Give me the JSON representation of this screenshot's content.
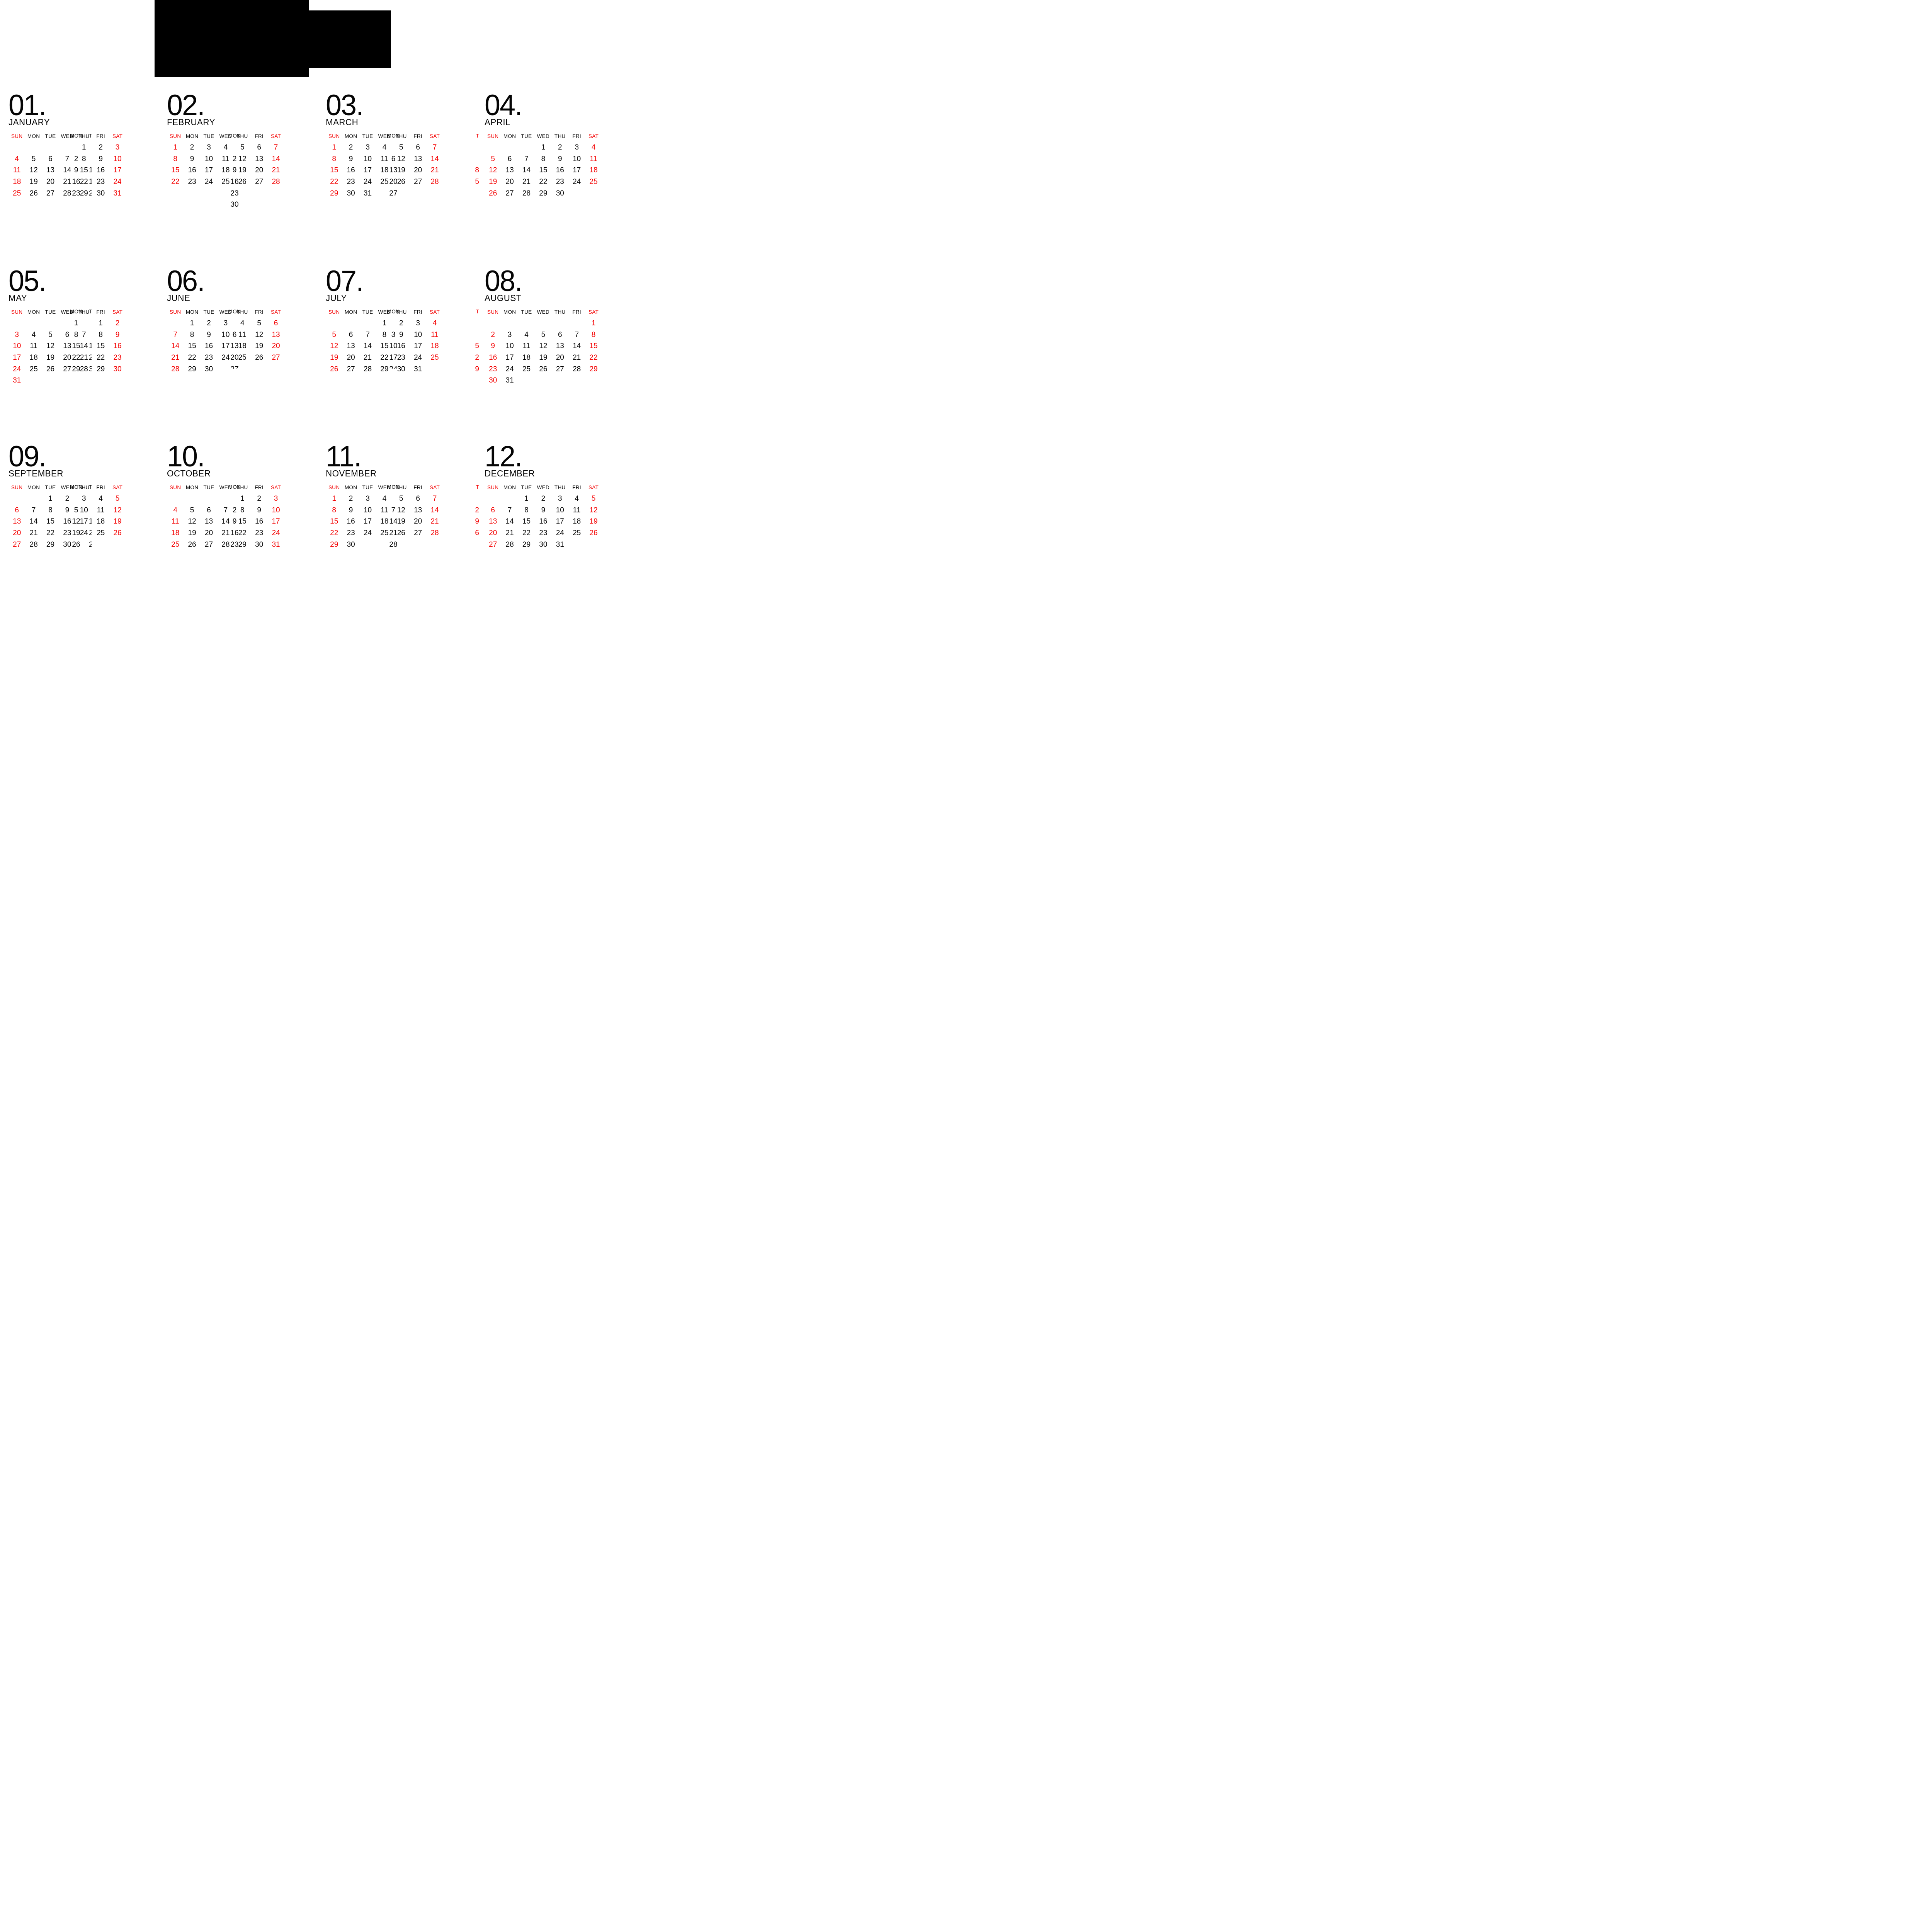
{
  "page": {
    "background": "#ffffff",
    "red": "#f40000",
    "black": "#050505"
  },
  "masthead": {
    "large_block": "",
    "small_block": ""
  },
  "weekdays": [
    "SUN",
    "MON",
    "TUE",
    "WED",
    "THU",
    "FRI",
    "SAT"
  ],
  "overlay": {
    "weekday_label": "MON",
    "weekday_sliver": "T"
  },
  "layout": {
    "col_lefts": [
      22,
      432,
      843,
      1254
    ],
    "row_tops": [
      243,
      698,
      1152
    ]
  },
  "months": [
    {
      "num": "01.",
      "name": "JANUARY",
      "col": 0,
      "row": 0,
      "weeks": [
        [
          "",
          "",
          "",
          "",
          "1",
          "2",
          "3"
        ],
        [
          "4",
          "5",
          "6",
          "7",
          "8",
          "9",
          "10"
        ],
        [
          "11",
          "12",
          "13",
          "14",
          "15",
          "16",
          "17"
        ],
        [
          "18",
          "19",
          "20",
          "21",
          "22",
          "23",
          "24"
        ],
        [
          "25",
          "26",
          "27",
          "28",
          "29",
          "30",
          "31"
        ]
      ],
      "overlay_mondays": [
        {
          "week": 2,
          "value": "2"
        },
        {
          "week": 3,
          "value": "9"
        },
        {
          "week": 4,
          "value": "16"
        },
        {
          "week": 5,
          "value": "23"
        }
      ],
      "tue_slivers": [
        {
          "week": 3,
          "value": "1"
        },
        {
          "week": 4,
          "value": "1"
        },
        {
          "week": 5,
          "value": "2"
        }
      ],
      "header_sliver": true,
      "clipped_monday": null,
      "left_partials": []
    },
    {
      "num": "02.",
      "name": "FEBRUARY",
      "col": 1,
      "row": 0,
      "weeks": [
        [
          "1",
          "2",
          "3",
          "4",
          "5",
          "6",
          "7"
        ],
        [
          "8",
          "9",
          "10",
          "11",
          "12",
          "13",
          "14"
        ],
        [
          "15",
          "16",
          "17",
          "18",
          "19",
          "20",
          "21"
        ],
        [
          "22",
          "23",
          "24",
          "25",
          "26",
          "27",
          "28"
        ]
      ],
      "overlay_mondays": [
        {
          "week": 2,
          "value": "2"
        },
        {
          "week": 3,
          "value": "9"
        },
        {
          "week": 4,
          "value": "16"
        },
        {
          "week": 5,
          "value": "23"
        },
        {
          "week": 6,
          "value": "30"
        }
      ],
      "tue_slivers": [],
      "header_sliver": false,
      "clipped_monday": null,
      "left_partials": []
    },
    {
      "num": "03.",
      "name": "MARCH",
      "col": 2,
      "row": 0,
      "weeks": [
        [
          "1",
          "2",
          "3",
          "4",
          "5",
          "6",
          "7"
        ],
        [
          "8",
          "9",
          "10",
          "11",
          "12",
          "13",
          "14"
        ],
        [
          "15",
          "16",
          "17",
          "18",
          "19",
          "20",
          "21"
        ],
        [
          "22",
          "23",
          "24",
          "25",
          "26",
          "27",
          "28"
        ],
        [
          "29",
          "30",
          "31",
          "",
          "",
          "",
          ""
        ]
      ],
      "overlay_mondays": [
        {
          "week": 2,
          "value": "6"
        },
        {
          "week": 3,
          "value": "13"
        },
        {
          "week": 4,
          "value": "20"
        },
        {
          "week": 5,
          "value": "27"
        }
      ],
      "tue_slivers": [],
      "header_sliver": false,
      "clipped_monday": null,
      "left_partials": []
    },
    {
      "num": "04.",
      "name": "APRIL",
      "col": 3,
      "row": 0,
      "weeks": [
        [
          "",
          "",
          "",
          "1",
          "2",
          "3",
          "4"
        ],
        [
          "5",
          "6",
          "7",
          "8",
          "9",
          "10",
          "11"
        ],
        [
          "12",
          "13",
          "14",
          "15",
          "16",
          "17",
          "18"
        ],
        [
          "19",
          "20",
          "21",
          "22",
          "23",
          "24",
          "25"
        ],
        [
          "26",
          "27",
          "28",
          "29",
          "30",
          "",
          ""
        ]
      ],
      "overlay_mondays": [],
      "tue_slivers": [],
      "header_sliver": false,
      "clipped_monday": null,
      "left_partials": [
        {
          "week": 0,
          "value": "T"
        },
        {
          "week": 3,
          "value": "8"
        },
        {
          "week": 4,
          "value": "5"
        }
      ]
    },
    {
      "num": "05.",
      "name": "MAY",
      "col": 0,
      "row": 1,
      "weeks": [
        [
          "",
          "",
          "",
          "",
          "",
          "1",
          "2"
        ],
        [
          "3",
          "4",
          "5",
          "6",
          "7",
          "8",
          "9"
        ],
        [
          "10",
          "11",
          "12",
          "13",
          "14",
          "15",
          "16"
        ],
        [
          "17",
          "18",
          "19",
          "20",
          "21",
          "22",
          "23"
        ],
        [
          "24",
          "25",
          "26",
          "27",
          "28",
          "29",
          "30"
        ],
        [
          "31",
          "",
          "",
          "",
          "",
          "",
          ""
        ]
      ],
      "overlay_mondays": [
        {
          "week": 1,
          "value": "1"
        },
        {
          "week": 2,
          "value": "8"
        },
        {
          "week": 3,
          "value": "15"
        },
        {
          "week": 4,
          "value": "22"
        },
        {
          "week": 5,
          "value": "29"
        }
      ],
      "tue_slivers": [
        {
          "week": 3,
          "value": "1"
        },
        {
          "week": 4,
          "value": "2"
        },
        {
          "week": 5,
          "value": "3"
        }
      ],
      "header_sliver": true,
      "clipped_monday": null,
      "left_partials": []
    },
    {
      "num": "06.",
      "name": "JUNE",
      "col": 1,
      "row": 1,
      "weeks": [
        [
          "",
          "1",
          "2",
          "3",
          "4",
          "5",
          "6"
        ],
        [
          "7",
          "8",
          "9",
          "10",
          "11",
          "12",
          "13"
        ],
        [
          "14",
          "15",
          "16",
          "17",
          "18",
          "19",
          "20"
        ],
        [
          "21",
          "22",
          "23",
          "24",
          "25",
          "26",
          "27"
        ],
        [
          "28",
          "29",
          "30",
          "",
          "",
          "",
          ""
        ]
      ],
      "overlay_mondays": [
        {
          "week": 2,
          "value": "6"
        },
        {
          "week": 3,
          "value": "13"
        },
        {
          "week": 4,
          "value": "20"
        }
      ],
      "tue_slivers": [],
      "header_sliver": false,
      "clipped_monday": {
        "week": 5,
        "value": "27"
      },
      "left_partials": []
    },
    {
      "num": "07.",
      "name": "JULY",
      "col": 2,
      "row": 1,
      "weeks": [
        [
          "",
          "",
          "",
          "1",
          "2",
          "3",
          "4"
        ],
        [
          "5",
          "6",
          "7",
          "8",
          "9",
          "10",
          "11"
        ],
        [
          "12",
          "13",
          "14",
          "15",
          "16",
          "17",
          "18"
        ],
        [
          "19",
          "20",
          "21",
          "22",
          "23",
          "24",
          "25"
        ],
        [
          "26",
          "27",
          "28",
          "29",
          "30",
          "31",
          ""
        ]
      ],
      "overlay_mondays": [
        {
          "week": 2,
          "value": "3"
        },
        {
          "week": 3,
          "value": "10"
        },
        {
          "week": 4,
          "value": "17"
        }
      ],
      "tue_slivers": [],
      "header_sliver": false,
      "clipped_monday": {
        "week": 5,
        "value": "24"
      },
      "left_partials": []
    },
    {
      "num": "08.",
      "name": "AUGUST",
      "col": 3,
      "row": 1,
      "weeks": [
        [
          "",
          "",
          "",
          "",
          "",
          "",
          "1"
        ],
        [
          "2",
          "3",
          "4",
          "5",
          "6",
          "7",
          "8"
        ],
        [
          "9",
          "10",
          "11",
          "12",
          "13",
          "14",
          "15"
        ],
        [
          "16",
          "17",
          "18",
          "19",
          "20",
          "21",
          "22"
        ],
        [
          "23",
          "24",
          "25",
          "26",
          "27",
          "28",
          "29"
        ],
        [
          "30",
          "31",
          "",
          "",
          "",
          "",
          ""
        ]
      ],
      "overlay_mondays": [],
      "tue_slivers": [],
      "header_sliver": false,
      "clipped_monday": null,
      "left_partials": [
        {
          "week": 0,
          "value": "T"
        },
        {
          "week": 3,
          "value": "5"
        },
        {
          "week": 4,
          "value": "2"
        },
        {
          "week": 5,
          "value": "9"
        }
      ]
    },
    {
      "num": "09.",
      "name": "SEPTEMBER",
      "col": 0,
      "row": 2,
      "weeks": [
        [
          "",
          "",
          "1",
          "2",
          "3",
          "4",
          "5"
        ],
        [
          "6",
          "7",
          "8",
          "9",
          "10",
          "11",
          "12"
        ],
        [
          "13",
          "14",
          "15",
          "16",
          "17",
          "18",
          "19"
        ],
        [
          "20",
          "21",
          "22",
          "23",
          "24",
          "25",
          "26"
        ],
        [
          "27",
          "28",
          "29",
          "30",
          "",
          "",
          ""
        ]
      ],
      "overlay_mondays": [
        {
          "week": 2,
          "value": "5"
        },
        {
          "week": 3,
          "value": "12"
        },
        {
          "week": 4,
          "value": "19"
        },
        {
          "week": 5,
          "value": "26"
        }
      ],
      "tue_slivers": [
        {
          "week": 3,
          "value": "1"
        },
        {
          "week": 4,
          "value": "2"
        },
        {
          "week": 5,
          "value": "2"
        }
      ],
      "header_sliver": true,
      "clipped_monday": null,
      "left_partials": []
    },
    {
      "num": "10.",
      "name": "OCTOBER",
      "col": 1,
      "row": 2,
      "weeks": [
        [
          "",
          "",
          "",
          "",
          "1",
          "2",
          "3"
        ],
        [
          "4",
          "5",
          "6",
          "7",
          "8",
          "9",
          "10"
        ],
        [
          "11",
          "12",
          "13",
          "14",
          "15",
          "16",
          "17"
        ],
        [
          "18",
          "19",
          "20",
          "21",
          "22",
          "23",
          "24"
        ],
        [
          "25",
          "26",
          "27",
          "28",
          "29",
          "30",
          "31"
        ]
      ],
      "overlay_mondays": [
        {
          "week": 2,
          "value": "2"
        },
        {
          "week": 3,
          "value": "9"
        },
        {
          "week": 4,
          "value": "16"
        },
        {
          "week": 5,
          "value": "23"
        }
      ],
      "tue_slivers": [],
      "header_sliver": false,
      "clipped_monday": null,
      "left_partials": []
    },
    {
      "num": "11.",
      "name": "NOVEMBER",
      "col": 2,
      "row": 2,
      "weeks": [
        [
          "1",
          "2",
          "3",
          "4",
          "5",
          "6",
          "7"
        ],
        [
          "8",
          "9",
          "10",
          "11",
          "12",
          "13",
          "14"
        ],
        [
          "15",
          "16",
          "17",
          "18",
          "19",
          "20",
          "21"
        ],
        [
          "22",
          "23",
          "24",
          "25",
          "26",
          "27",
          "28"
        ],
        [
          "29",
          "30",
          "",
          "",
          "",
          "",
          ""
        ]
      ],
      "overlay_mondays": [
        {
          "week": 2,
          "value": "7"
        },
        {
          "week": 3,
          "value": "14"
        },
        {
          "week": 4,
          "value": "21"
        },
        {
          "week": 5,
          "value": "28"
        }
      ],
      "tue_slivers": [],
      "header_sliver": false,
      "clipped_monday": null,
      "left_partials": []
    },
    {
      "num": "12.",
      "name": "DECEMBER",
      "col": 3,
      "row": 2,
      "weeks": [
        [
          "",
          "",
          "1",
          "2",
          "3",
          "4",
          "5"
        ],
        [
          "6",
          "7",
          "8",
          "9",
          "10",
          "11",
          "12"
        ],
        [
          "13",
          "14",
          "15",
          "16",
          "17",
          "18",
          "19"
        ],
        [
          "20",
          "21",
          "22",
          "23",
          "24",
          "25",
          "26"
        ],
        [
          "27",
          "28",
          "29",
          "30",
          "31",
          "",
          ""
        ]
      ],
      "overlay_mondays": [],
      "tue_slivers": [],
      "header_sliver": false,
      "clipped_monday": null,
      "left_partials": [
        {
          "week": 0,
          "value": "T"
        },
        {
          "week": 2,
          "value": "2"
        },
        {
          "week": 3,
          "value": "9"
        },
        {
          "week": 4,
          "value": "6"
        }
      ]
    }
  ]
}
